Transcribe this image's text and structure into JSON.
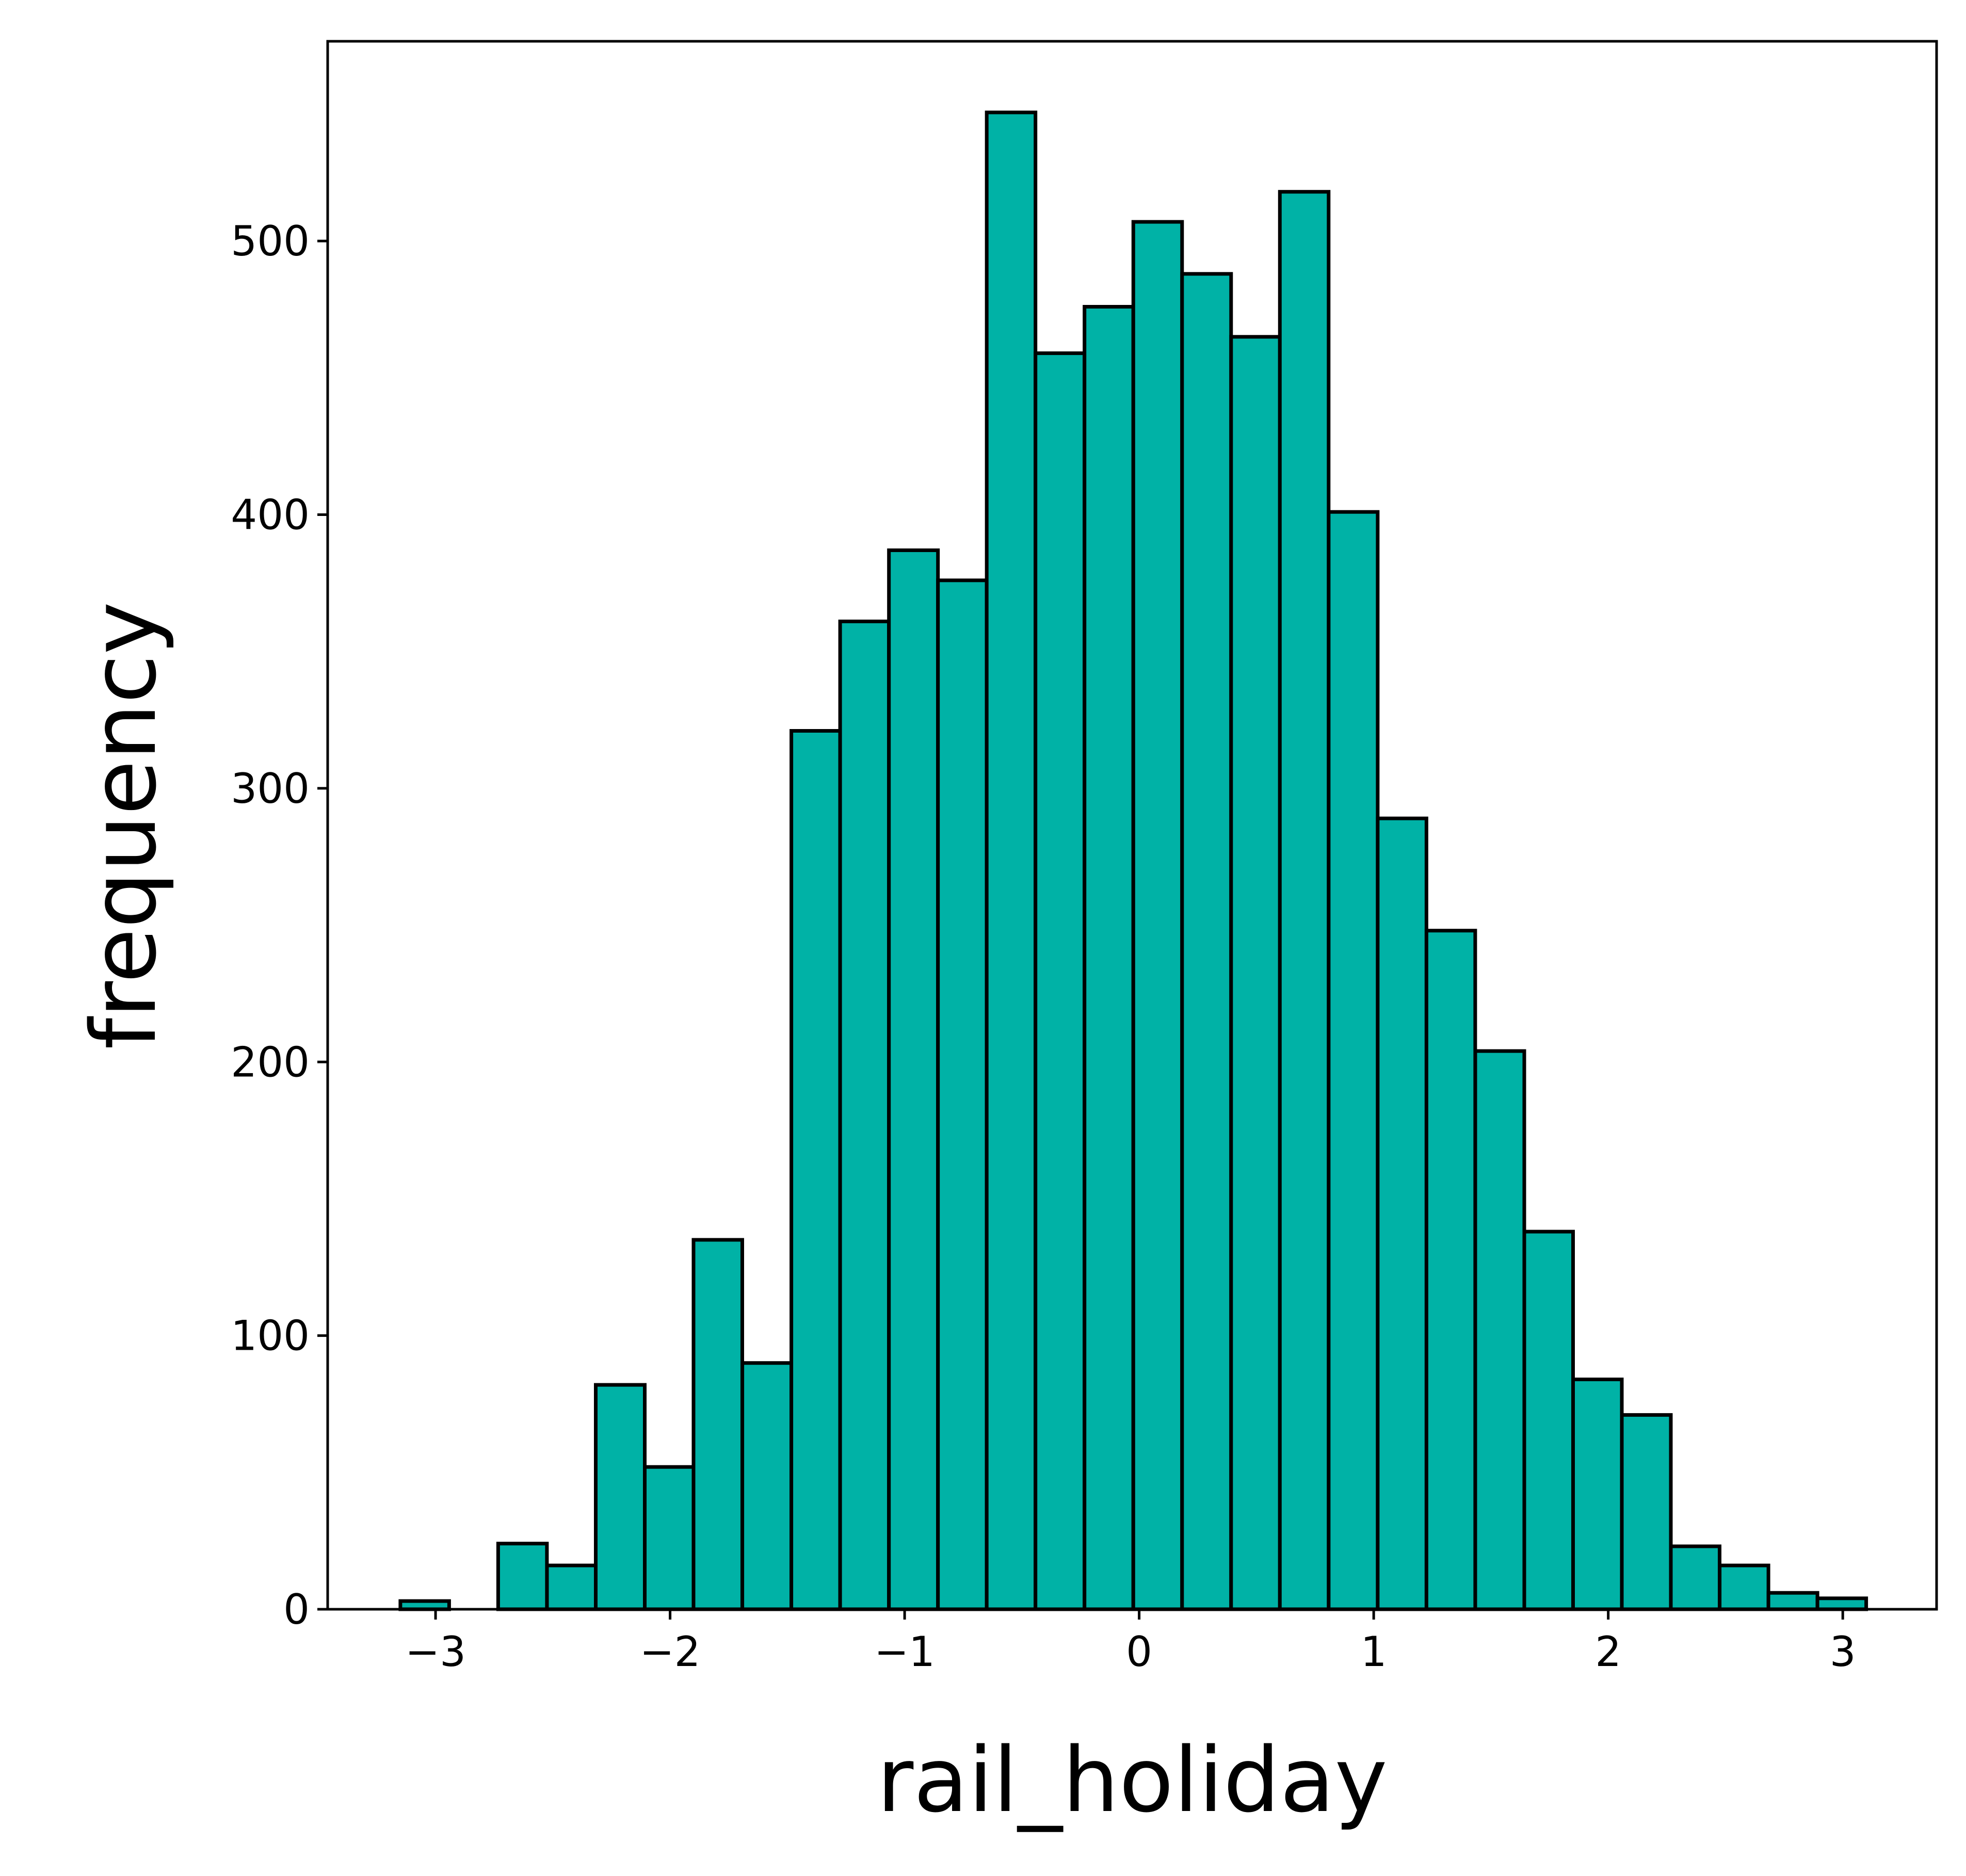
{
  "chart_data": {
    "type": "bar",
    "subtype": "histogram",
    "title": "",
    "xlabel": "rail_holiday",
    "ylabel": "frequency",
    "xlim": [
      -3.46,
      3.4
    ],
    "ylim": [
      0,
      573
    ],
    "x_ticks": [
      -3,
      -2,
      -1,
      0,
      1,
      2,
      3
    ],
    "x_tick_labels": [
      "−3",
      "−2",
      "−1",
      "0",
      "1",
      "2",
      "3"
    ],
    "y_ticks": [
      0,
      100,
      200,
      300,
      400,
      500
    ],
    "y_tick_labels": [
      "0",
      "100",
      "200",
      "300",
      "400",
      "500"
    ],
    "bin_edges": [
      -3.15,
      -2.942,
      -2.733,
      -2.525,
      -2.317,
      -2.108,
      -1.9,
      -1.692,
      -1.483,
      -1.275,
      -1.067,
      -0.858,
      -0.65,
      -0.442,
      -0.233,
      -0.025,
      0.183,
      0.392,
      0.6,
      0.808,
      1.017,
      1.225,
      1.433,
      1.642,
      1.85,
      2.058,
      2.267,
      2.475,
      2.683,
      2.892,
      3.1
    ],
    "values": [
      3,
      0,
      24,
      16,
      82,
      52,
      135,
      90,
      321,
      361,
      387,
      376,
      547,
      459,
      476,
      507,
      488,
      465,
      518,
      401,
      289,
      248,
      204,
      138,
      84,
      71,
      23,
      16,
      6,
      4
    ],
    "grid": false,
    "legend": "none",
    "bar_color": "#00b2a6",
    "edge_color": "#000000"
  }
}
